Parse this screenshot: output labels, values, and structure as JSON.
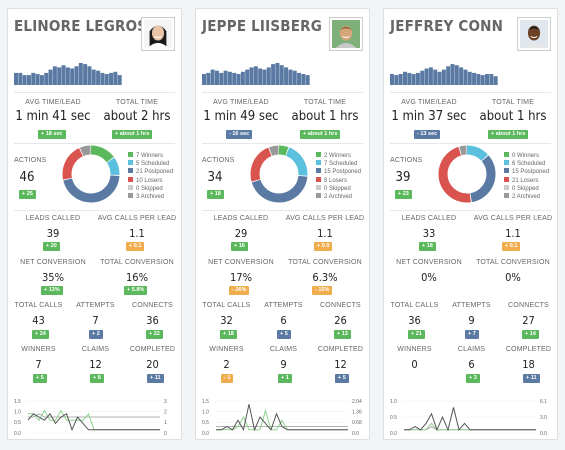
{
  "colors": {
    "green": "#5cb85c",
    "blue": "#5b7aa3",
    "orange": "#f0ad4e",
    "legend": [
      "#5cb85c",
      "#5bc0de",
      "#5b7aa3",
      "#d9534f",
      "#cccccc",
      "#999999"
    ]
  },
  "labels": {
    "avg_time": "AVG TIME/LEAD",
    "total_time": "TOTAL TIME",
    "actions": "ACTIONS",
    "leads_called": "LEADS CALLED",
    "avg_calls": "AVG CALLS PER LEAD",
    "net_conv": "NET CONVERSION",
    "total_conv": "TOTAL CONVERSION",
    "total_calls": "TOTAL CALLS",
    "attempts": "ATTEMPTS",
    "connects": "CONNECTS",
    "winners": "WINNERS",
    "claims": "CLAIMS",
    "completed": "COMPLETED"
  },
  "cards": [
    {
      "name": "ELINORE LEGROS",
      "avg_time": "1 min 41 sec",
      "avg_time_badge": "+ 18 sec",
      "total_time": "about 2 hrs",
      "total_time_badge": "+ about 1 hrs",
      "actions": "46",
      "actions_badge": "+ 25",
      "legend": [
        "7 Winners",
        "5 Scheduled",
        "21 Postponed",
        "10 Losers",
        "0 Skipped",
        "3 Archived"
      ],
      "leads_called": "39",
      "leads_called_badge": "+ 20",
      "avg_calls": "1.1",
      "avg_calls_badge": "+ 0.1",
      "net_conv": "35%",
      "net_conv_badge": "+ 13%",
      "total_conv": "16%",
      "total_conv_badge": "+ 5.8%",
      "total_calls": "43",
      "total_calls_badge": "+ 24",
      "attempts": "7",
      "attempts_badge": "+ 2",
      "connects": "36",
      "connects_badge": "+ 22",
      "winners": "7",
      "winners_badge": "+ 5",
      "claims": "12",
      "claims_badge": "+ 8",
      "completed": "20",
      "completed_badge": "+ 11",
      "chart": {
        "left_ticks": [
          "1.5",
          "1.0",
          "0.5",
          "0.0"
        ],
        "right_ticks": [
          "3",
          "2",
          "1",
          "0"
        ]
      }
    },
    {
      "name": "JEPPE LIISBERG",
      "avg_time": "1 min 49 sec",
      "avg_time_badge": "- 16 sec",
      "total_time": "about 1 hrs",
      "total_time_badge": "+ about 1 hrs",
      "actions": "34",
      "actions_badge": "+ 18",
      "legend": [
        "2 Winners",
        "7 Scheduled",
        "15 Postponed",
        "8 Losers",
        "0 Skipped",
        "2 Archived"
      ],
      "leads_called": "29",
      "leads_called_badge": "+ 16",
      "avg_calls": "1.1",
      "avg_calls_badge": "+ 0.0",
      "net_conv": "17%",
      "net_conv_badge": "- 26%",
      "total_conv": "6.3%",
      "total_conv_badge": "- 15%",
      "total_calls": "32",
      "total_calls_badge": "+ 18",
      "attempts": "6",
      "attempts_badge": "+ 5",
      "connects": "26",
      "connects_badge": "+ 13",
      "winners": "2",
      "winners_badge": "- 1",
      "claims": "9",
      "claims_badge": "+ 1",
      "completed": "12",
      "completed_badge": "+ 5",
      "chart": {
        "left_ticks": [
          "1.5",
          "1.0",
          "0.5",
          "0.0"
        ],
        "right_ticks": [
          "2.04",
          "1.36",
          "0.68",
          "0.0"
        ]
      }
    },
    {
      "name": "JEFFREY CONN",
      "avg_time": "1 min 37 sec",
      "avg_time_badge": "- 13 sec",
      "total_time": "about 1 hrs",
      "total_time_badge": "+ about 1 hrs",
      "actions": "39",
      "actions_badge": "+ 23",
      "legend": [
        "0 Winners",
        "6 Scheduled",
        "15 Postponed",
        "21 Losers",
        "0 Skipped",
        "2 Archived"
      ],
      "leads_called": "33",
      "leads_called_badge": "+ 18",
      "avg_calls": "1.1",
      "avg_calls_badge": "+ 0.1",
      "net_conv": "0%",
      "total_conv": "0%",
      "total_calls": "36",
      "total_calls_badge": "+ 21",
      "attempts": "9",
      "attempts_badge": "+ 7",
      "connects": "27",
      "connects_badge": "+ 14",
      "winners": "0",
      "claims": "6",
      "claims_badge": "+ 3",
      "completed": "18",
      "completed_badge": "+ 11",
      "chart": {
        "left_ticks": [
          "1.0",
          "0.5",
          "0.0"
        ],
        "right_ticks": [
          "6.1",
          "3.0",
          "0.0"
        ]
      }
    }
  ]
}
